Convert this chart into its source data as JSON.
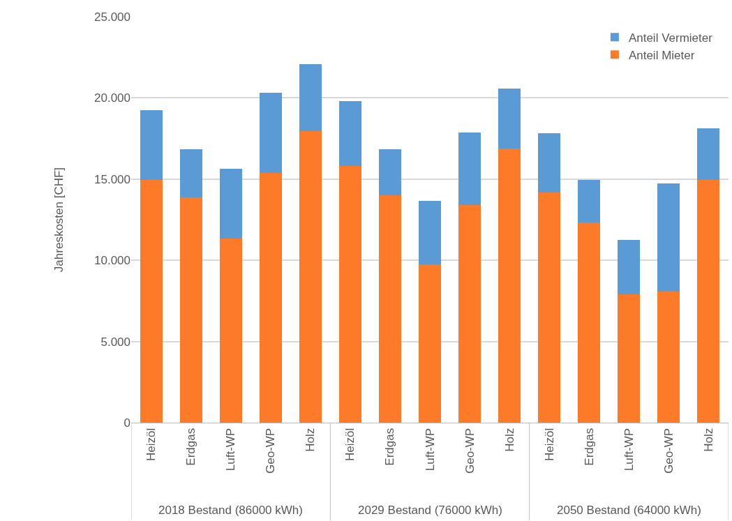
{
  "chart_data": {
    "type": "bar",
    "stacked": true,
    "ylabel": "Jahreskosten [CHF]",
    "categories": [
      "Heizöl",
      "Erdgas",
      "Luft-WP",
      "Geo-WP",
      "Holz",
      "Heizöl",
      "Erdgas",
      "Luft-WP",
      "Geo-WP",
      "Holz",
      "Heizöl",
      "Erdgas",
      "Luft-WP",
      "Geo-WP",
      "Holz"
    ],
    "series": [
      {
        "name": "Anteil Mieter",
        "color": "#fd7b28",
        "values": [
          14950,
          13880,
          11330,
          15360,
          17940,
          15790,
          14020,
          9770,
          13420,
          16870,
          14170,
          12330,
          7920,
          8070,
          14970
        ]
      },
      {
        "name": "Anteil Vermieter",
        "color": "#5b9bd5",
        "values": [
          4300,
          2980,
          4300,
          4970,
          4140,
          4030,
          2800,
          3910,
          4430,
          3720,
          3660,
          2600,
          3350,
          6680,
          3140
        ]
      }
    ],
    "annotations": [
      "2018 Bestand (86000 kWh)",
      "2029 Bestand (76000 kWh)",
      "2050 Bestand (64000 kWh)"
    ],
    "ylim": [
      0,
      25000
    ],
    "yticks": [
      0,
      {
        "value": 5000,
        "label": "5.000"
      },
      {
        "value": 10000,
        "label": "10.000"
      },
      {
        "value": 15000,
        "label": "15.000"
      },
      {
        "value": 20000,
        "label": "20.000"
      },
      {
        "value": 25000,
        "label": "25.000"
      }
    ],
    "grid": "y",
    "legend": "top right"
  }
}
